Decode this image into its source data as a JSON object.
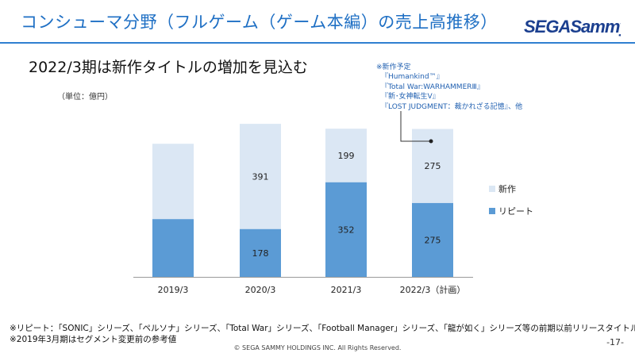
{
  "slide": {
    "title": "コンシューマ分野（フルゲーム（ゲーム本編）の売上高推移）",
    "brand": "SEGASammy",
    "subtitle": "2022/3期は新作タイトルの増加を見込む",
    "unit": "（単位：億円）",
    "annotation": [
      "※新作予定",
      "『Humankind™』",
      "『Total War:WARHAMMERⅢ』",
      "『新･女神転生Ⅴ』",
      "『LOST JUDGMENT：裁かれざる記憶』、他"
    ],
    "footnotes": [
      "※リピート：「SONIC」シリーズ、「ペルソナ」シリーズ、「Total War」シリーズ、「Football Manager」シリーズ、「龍が如く」シリーズ等の前期以前リリースタイトル",
      "※2019年3月期はセグメント変更前の参考値"
    ],
    "copyright": "© SEGA SAMMY HOLDINGS INC. All Rights Reserved.",
    "page": "-17-",
    "colors": {
      "title": "#1e6fc4",
      "repeat": "#5b9bd5",
      "new": "#dbe7f4",
      "brand": "#1b3f8f"
    }
  },
  "chart_data": {
    "type": "bar",
    "stacked": true,
    "categories": [
      "2019/3",
      "2020/3",
      "2021/3",
      "2022/3（計画）"
    ],
    "series": [
      {
        "name": "リピート",
        "values": [
          null,
          178,
          352,
          275
        ],
        "labels": [
          "",
          "178",
          "352",
          "275"
        ],
        "color": "#5b9bd5"
      },
      {
        "name": "新作",
        "values": [
          null,
          391,
          199,
          275
        ],
        "labels": [
          "",
          "391",
          "199",
          "275"
        ],
        "color": "#dbe7f4"
      }
    ],
    "notes": "2019/3 bar is unlabeled (reference value before segment change); approximate repeat ≈ 215, new ≈ 280",
    "estimated_values": {
      "2019/3": {
        "リピート": 215,
        "新作": 280
      }
    },
    "legend": [
      "新作",
      "リピート"
    ],
    "legend_position": "right",
    "ylim": [
      0,
      650
    ],
    "grid": false
  }
}
